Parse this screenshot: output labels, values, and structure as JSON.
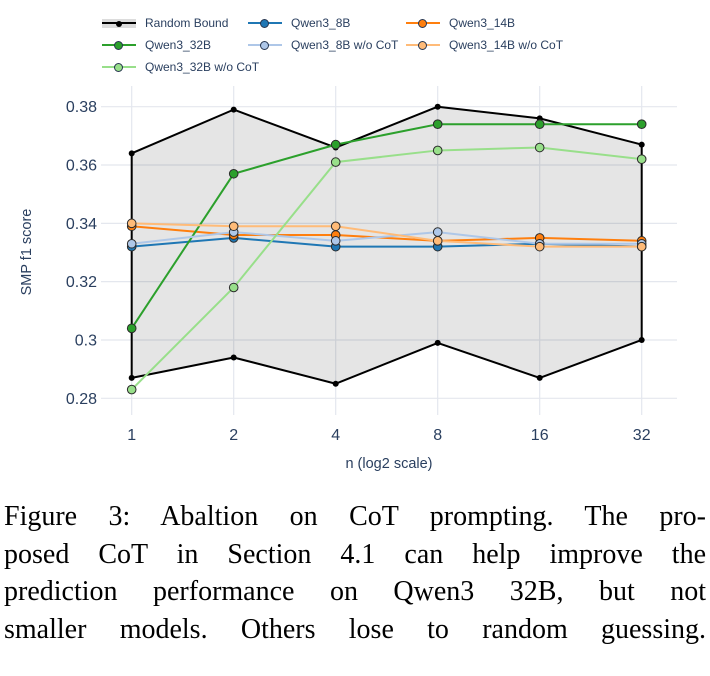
{
  "figure": {
    "caption_lines": [
      "Figure 3: Abaltion on CoT prompting. The pro-",
      "posed CoT in Section 4.1 can help improve the",
      "prediction performance on Qwen3 32B, but not",
      "smaller models. Others lose to random guessing."
    ]
  },
  "chart_data": {
    "type": "line",
    "title": "",
    "xlabel": "n (log2 scale)",
    "ylabel": "SMP f1 score",
    "x_scale": "log2",
    "x": [
      1,
      2,
      4,
      8,
      16,
      32
    ],
    "xtick_labels": [
      "1",
      "2",
      "4",
      "8",
      "16",
      "32"
    ],
    "yticks": [
      0.28,
      0.3,
      0.32,
      0.34,
      0.36,
      0.38
    ],
    "ytick_labels": [
      "0.28",
      "0.3",
      "0.32",
      "0.34",
      "0.36",
      "0.38"
    ],
    "ylim": [
      0.274,
      0.387
    ],
    "grid": true,
    "legend_position": "top-left",
    "band": {
      "name": "Random Bound",
      "color": "#000000",
      "fill": "rgba(0,0,0,0.10)",
      "upper": [
        0.364,
        0.379,
        0.366,
        0.38,
        0.376,
        0.367
      ],
      "lower": [
        0.287,
        0.294,
        0.285,
        0.299,
        0.287,
        0.3
      ]
    },
    "series": [
      {
        "name": "Qwen3_8B",
        "color": "#1f77b4",
        "values": [
          0.332,
          0.335,
          0.332,
          0.332,
          0.333,
          0.332
        ]
      },
      {
        "name": "Qwen3_14B",
        "color": "#ff7f0e",
        "values": [
          0.339,
          0.336,
          0.336,
          0.334,
          0.335,
          0.334
        ]
      },
      {
        "name": "Qwen3_32B",
        "color": "#2ca02c",
        "values": [
          0.304,
          0.357,
          0.367,
          0.374,
          0.374,
          0.374
        ]
      },
      {
        "name": "Qwen3_8B w/o CoT",
        "color": "#aec7e8",
        "values": [
          0.333,
          0.337,
          0.334,
          0.337,
          0.333,
          0.333
        ]
      },
      {
        "name": "Qwen3_14B w/o CoT",
        "color": "#ffbb78",
        "values": [
          0.34,
          0.339,
          0.339,
          0.334,
          0.332,
          0.332
        ]
      },
      {
        "name": "Qwen3_32B w/o CoT",
        "color": "#98df8a",
        "values": [
          0.283,
          0.318,
          0.361,
          0.365,
          0.366,
          0.362
        ]
      }
    ],
    "legend": [
      {
        "label": "Random Bound",
        "color": "#000000",
        "band": true
      },
      {
        "label": "Qwen3_8B",
        "color": "#1f77b4"
      },
      {
        "label": "Qwen3_14B",
        "color": "#ff7f0e"
      },
      {
        "label": "Qwen3_32B",
        "color": "#2ca02c"
      },
      {
        "label": "Qwen3_8B w/o CoT",
        "color": "#aec7e8"
      },
      {
        "label": "Qwen3_14B w/o CoT",
        "color": "#ffbb78"
      },
      {
        "label": "Qwen3_32B w/o CoT",
        "color": "#98df8a"
      }
    ],
    "colors": {
      "axis_text": "#2a3f5f",
      "grid": "#e4e7ee",
      "band_fill_hex": "#e6e6e6"
    }
  }
}
